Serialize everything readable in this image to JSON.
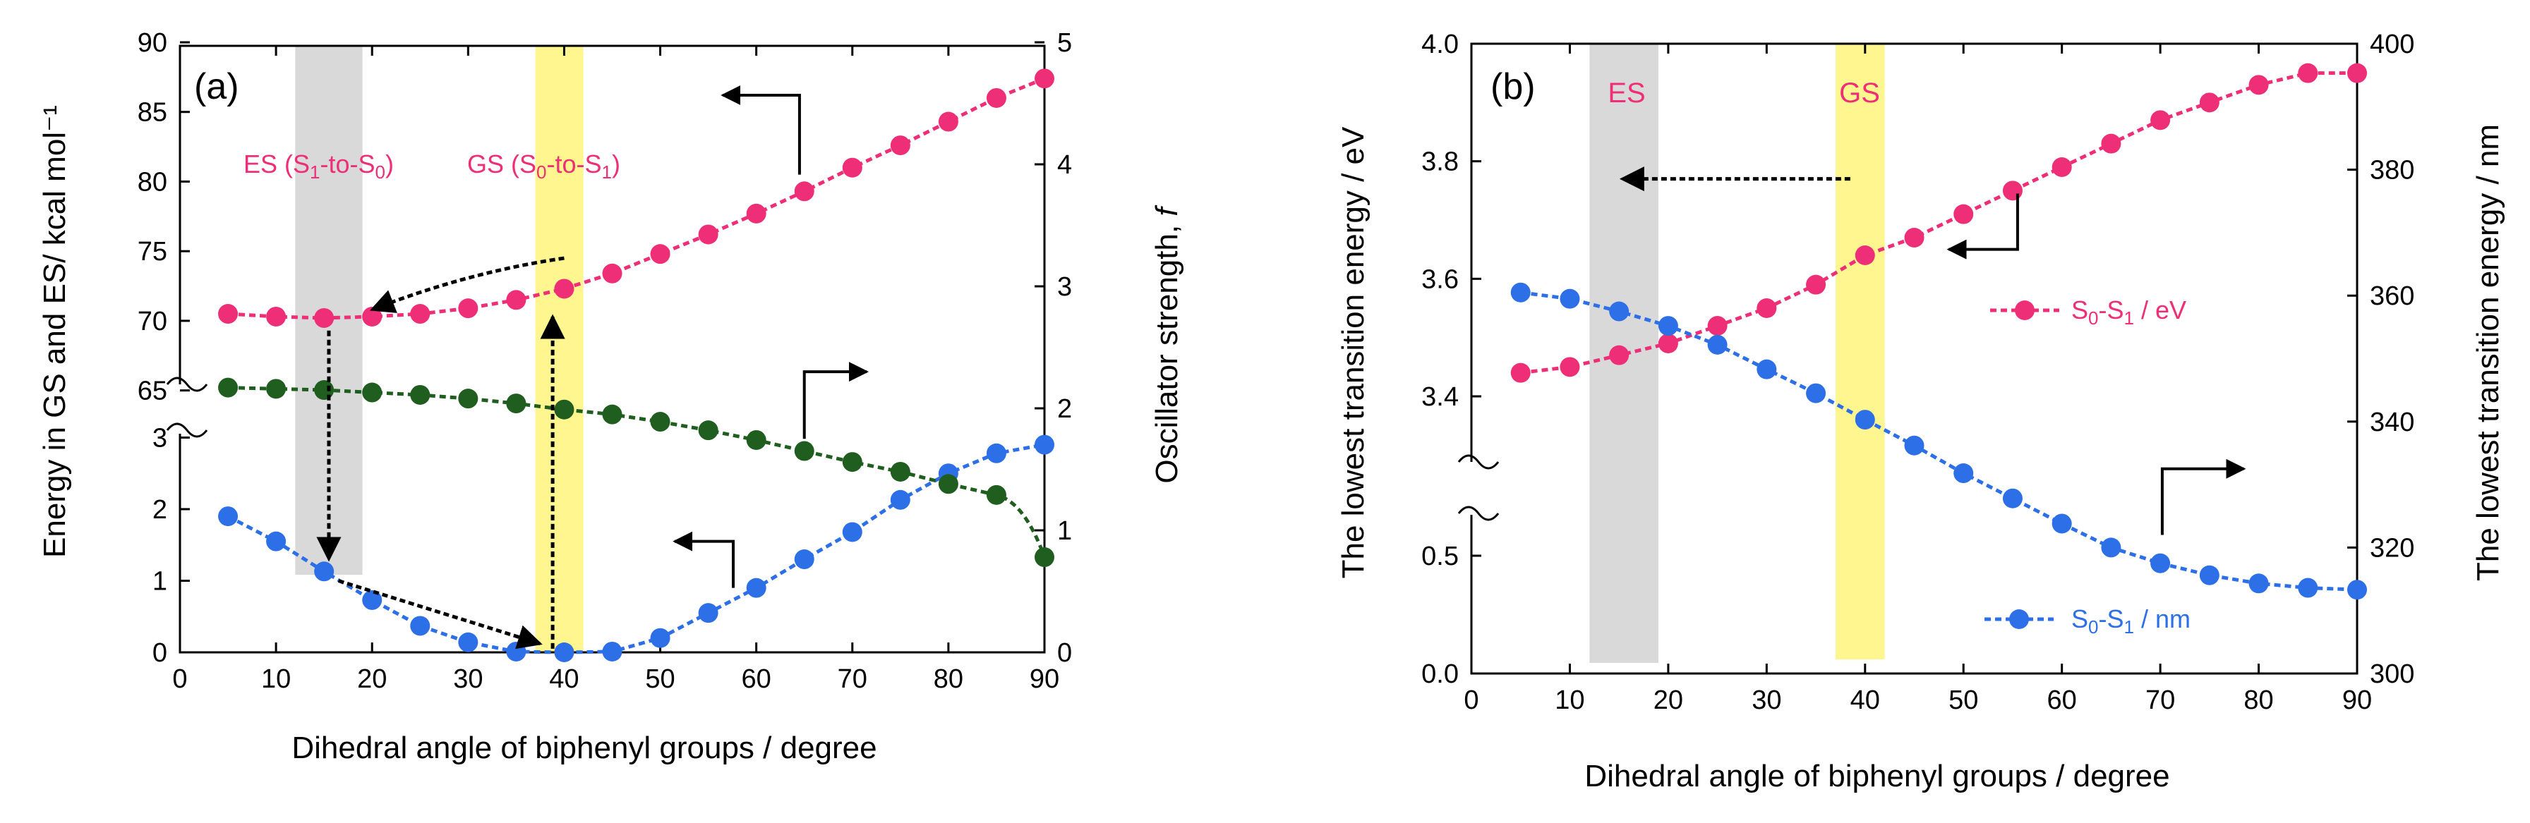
{
  "colors": {
    "pink": "#ee2f77",
    "blue": "#2d6fe6",
    "green": "#1f5e1f",
    "gray_band": "#d9d9d9",
    "yellow_band": "#fff68f",
    "axis": "#000000"
  },
  "chart_data": [
    {
      "panel_label": "(a)",
      "type": "line",
      "xlabel": "Dihedral angle of biphenyl groups / degree",
      "ylabel_left": "Energy in GS and ES/ kcal mol⁻¹",
      "ylabel_right_text": "Oscillator strength, ",
      "ylabel_right_var": "f",
      "xlim": [
        0,
        90
      ],
      "x_ticks": [
        "0",
        "10",
        "20",
        "30",
        "40",
        "50",
        "60",
        "70",
        "80",
        "90"
      ],
      "y_left_upper_ticks": [
        "65",
        "70",
        "75",
        "80",
        "85",
        "90"
      ],
      "y_left_lower_ticks": [
        "0",
        "1",
        "2",
        "3"
      ],
      "y_right_ticks": [
        "0",
        "1",
        "2",
        "3",
        "4",
        "5"
      ],
      "ylim_left_upper": [
        62.5,
        90
      ],
      "ylim_left_lower": [
        0,
        3.3
      ],
      "ylim_right": [
        0,
        5
      ],
      "bands": [
        {
          "name": "ES band",
          "x_from": 12,
          "x_to": 19
        },
        {
          "name": "GS band",
          "x_from": 37,
          "x_to": 42
        }
      ],
      "annotations": {
        "es": {
          "pre": "ES (S",
          "sub1": "1",
          "mid": "-to-S",
          "sub2": "0",
          "post": ")"
        },
        "gs": {
          "pre": "GS (S",
          "sub1": "0",
          "mid": "-to-S",
          "sub2": "1",
          "post": ")"
        }
      },
      "x": [
        5,
        10,
        15,
        20,
        25,
        30,
        35,
        40,
        45,
        50,
        55,
        60,
        65,
        70,
        75,
        80,
        85,
        90
      ],
      "series": [
        {
          "name": "ES energy",
          "axis": "left-upper",
          "color": "pink",
          "values": [
            70.5,
            70.3,
            70.2,
            70.3,
            70.5,
            70.9,
            71.5,
            72.3,
            73.4,
            74.8,
            76.2,
            77.7,
            79.3,
            81.0,
            82.6,
            84.3,
            86.0,
            87.4
          ]
        },
        {
          "name": "GS energy",
          "axis": "left-lower",
          "color": "blue",
          "values": [
            1.9,
            1.55,
            1.13,
            0.73,
            0.37,
            0.14,
            0.01,
            0.0,
            0.01,
            0.2,
            0.55,
            0.9,
            1.3,
            1.68,
            2.13,
            2.5,
            2.78,
            2.9
          ]
        },
        {
          "name": "Oscillator strength",
          "axis": "right",
          "color": "green",
          "x_override": [
            5,
            10,
            15,
            20,
            25,
            30,
            35,
            40,
            45,
            50,
            55,
            60,
            65,
            70,
            75,
            80,
            85,
            90
          ],
          "values": [
            2.17,
            2.16,
            2.15,
            2.13,
            2.11,
            2.08,
            2.04,
            1.99,
            1.95,
            1.89,
            1.82,
            1.74,
            1.65,
            1.56,
            1.48,
            1.38,
            1.29,
            0.78
          ]
        }
      ]
    },
    {
      "panel_label": "(b)",
      "type": "line",
      "xlabel": "Dihedral angle of biphenyl groups / degree",
      "ylabel_left": "The lowest transition energy / eV",
      "ylabel_right": "The lowest transition energy / nm",
      "xlim": [
        0,
        90
      ],
      "x_ticks": [
        "0",
        "10",
        "20",
        "30",
        "40",
        "50",
        "60",
        "70",
        "80",
        "90"
      ],
      "y_left_upper_ticks": [
        "3.4",
        "3.6",
        "3.8",
        "4.0"
      ],
      "y_left_lower_ticks": [
        "0.0",
        "0.5"
      ],
      "y_right_ticks": [
        "300",
        "320",
        "340",
        "360",
        "380",
        "400"
      ],
      "ylim_left_upper": [
        3.27,
        4.0
      ],
      "ylim_left_lower": [
        0.0,
        0.7
      ],
      "ylim_right": [
        300,
        400
      ],
      "bands": [
        {
          "name": "ES band",
          "x_from": 12,
          "x_to": 19,
          "label": "ES"
        },
        {
          "name": "GS band",
          "x_from": 37,
          "x_to": 42,
          "label": "GS"
        }
      ],
      "legend": [
        {
          "pre": "S",
          "sub1": "0",
          "mid": "-S",
          "sub2": "1",
          "post": " / eV",
          "color": "pink"
        },
        {
          "pre": "S",
          "sub1": "0",
          "mid": "-S",
          "sub2": "1",
          "post": " / nm",
          "color": "blue"
        }
      ],
      "x": [
        5,
        10,
        15,
        20,
        25,
        30,
        35,
        40,
        45,
        50,
        55,
        60,
        65,
        70,
        75,
        80,
        85,
        90
      ],
      "series": [
        {
          "name": "S0-S1 / eV",
          "axis": "left-upper",
          "color": "pink",
          "values": [
            3.44,
            3.45,
            3.47,
            3.49,
            3.52,
            3.55,
            3.59,
            3.64,
            3.67,
            3.71,
            3.75,
            3.79,
            3.83,
            3.87,
            3.9,
            3.93,
            3.95,
            3.95
          ]
        },
        {
          "name": "S0-S1 / nm",
          "axis": "right",
          "color": "blue",
          "values": [
            360.5,
            359.5,
            357.5,
            355.2,
            352.2,
            348.3,
            344.5,
            340.3,
            336.2,
            331.8,
            327.8,
            323.8,
            320.0,
            317.5,
            315.6,
            314.3,
            313.6,
            313.3
          ]
        }
      ]
    }
  ]
}
